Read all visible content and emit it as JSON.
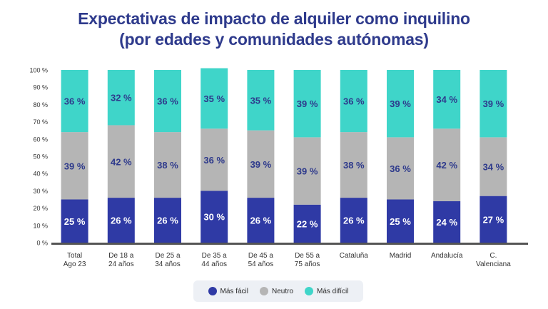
{
  "chart_data": {
    "type": "bar",
    "stacked": true,
    "title": "Expectativas de impacto de alquiler como inquilino",
    "subtitle": "(por edades y comunidades autónomas)",
    "categories": [
      [
        "Total",
        "Ago 23"
      ],
      [
        "De 18 a",
        "24 años"
      ],
      [
        "De 25 a",
        "34 años"
      ],
      [
        "De 35 a",
        "44 años"
      ],
      [
        "De 45 a",
        "54 años"
      ],
      [
        "De 55 a",
        "75 años"
      ],
      [
        "Cataluña"
      ],
      [
        "Madrid"
      ],
      [
        "Andalucía"
      ],
      [
        "C.",
        "Valenciana"
      ]
    ],
    "series": [
      {
        "name": "Más fácil",
        "color": "#2f3aa5",
        "values": [
          25,
          26,
          26,
          30,
          26,
          22,
          26,
          25,
          24,
          27
        ],
        "labels": [
          "25 %",
          "26 %",
          "26 %",
          "30 %",
          "26 %",
          "22 %",
          "26 %",
          "25 %",
          "24 %",
          "27 %"
        ]
      },
      {
        "name": "Neutro",
        "color": "#b5b5b5",
        "values": [
          39,
          42,
          38,
          36,
          39,
          39,
          38,
          36,
          42,
          34
        ],
        "labels": [
          "39 %",
          "42 %",
          "38 %",
          "36 %",
          "39 %",
          "39 %",
          "38 %",
          "36 %",
          "42 %",
          "34 %"
        ]
      },
      {
        "name": "Más difícil",
        "color": "#3fd5c9",
        "values": [
          36,
          32,
          36,
          35,
          35,
          39,
          36,
          39,
          34,
          39
        ],
        "labels": [
          "36 %",
          "32 %",
          "36 %",
          "35 %",
          "35 %",
          "39 %",
          "36 %",
          "39 %",
          "34 %",
          "39 %"
        ]
      }
    ],
    "ylim": [
      0,
      100
    ],
    "yticks": [
      "0 %",
      "10 %",
      "20 %",
      "30 %",
      "40 %",
      "50 %",
      "60 %",
      "70 %",
      "80 %",
      "90 %",
      "100 %"
    ],
    "legend_position": "bottom-center",
    "grid": false
  }
}
